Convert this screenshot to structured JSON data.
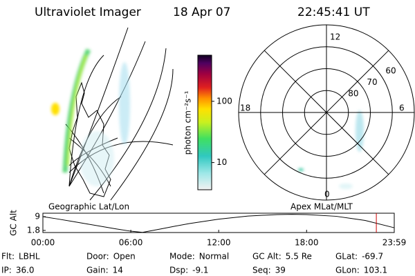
{
  "header": {
    "instrument": "Ultraviolet Imager",
    "date": "18 Apr 07",
    "time": "22:45:41 UT"
  },
  "map": {
    "label": "Geographic Lat/Lon"
  },
  "colorbar": {
    "label": "photon cm⁻²s⁻¹",
    "scale": "log",
    "ylim": [
      3.6,
      565
    ],
    "yticks": [
      10,
      100
    ]
  },
  "polar": {
    "label": "Apex MLat/MLT",
    "rlim": [
      90,
      50
    ],
    "lat_ticks": [
      60,
      70,
      80
    ],
    "mlt_labels": {
      "top": "12",
      "bottom": "0",
      "left": "18",
      "right": "6"
    }
  },
  "chart_data": {
    "type": "line",
    "ylabel": "GC Alt",
    "x": [
      0,
      1,
      2,
      3,
      4,
      5,
      6,
      6.8,
      8,
      9,
      10,
      12,
      14,
      16,
      17,
      18,
      20,
      22,
      23.98
    ],
    "series": [
      {
        "name": "GC Alt",
        "color": "#000000",
        "values": [
          9.0,
          7.8,
          6.5,
          5.2,
          3.9,
          2.6,
          1.4,
          0.8,
          2.5,
          4.0,
          5.4,
          7.7,
          9.3,
          10.1,
          10.2,
          10.1,
          9.2,
          7.0,
          3.2
        ]
      }
    ],
    "xlim": [
      0,
      23.983
    ],
    "ylim": [
      0.7,
      10.8
    ],
    "xticks": [
      {
        "value": 0,
        "label": "00:00"
      },
      {
        "value": 6,
        "label": "06:00"
      },
      {
        "value": 12,
        "label": "12:00"
      },
      {
        "value": 18,
        "label": "18:00"
      },
      {
        "value": 23.983,
        "label": "23:59"
      }
    ],
    "yticks": [
      1.8,
      9.0
    ],
    "marker_x": 22.76,
    "marker_color": "#cc0000"
  },
  "status": [
    [
      {
        "label": "Flt:",
        "value": "LBHL"
      },
      {
        "label": "Door:",
        "value": "Open"
      },
      {
        "label": "Mode:",
        "value": "Normal"
      },
      {
        "label": "GC Alt:",
        "value": "5.5 Re"
      },
      {
        "label": "GLat:",
        "value": "-69.7"
      }
    ],
    [
      {
        "label": "IP:",
        "value": "36.0"
      },
      {
        "label": "Gain:",
        "value": "14"
      },
      {
        "label": "Dsp:",
        "value": "-9.1"
      },
      {
        "label": "Seq:",
        "value": "39"
      },
      {
        "label": "GLon:",
        "value": "103.1"
      }
    ]
  ]
}
